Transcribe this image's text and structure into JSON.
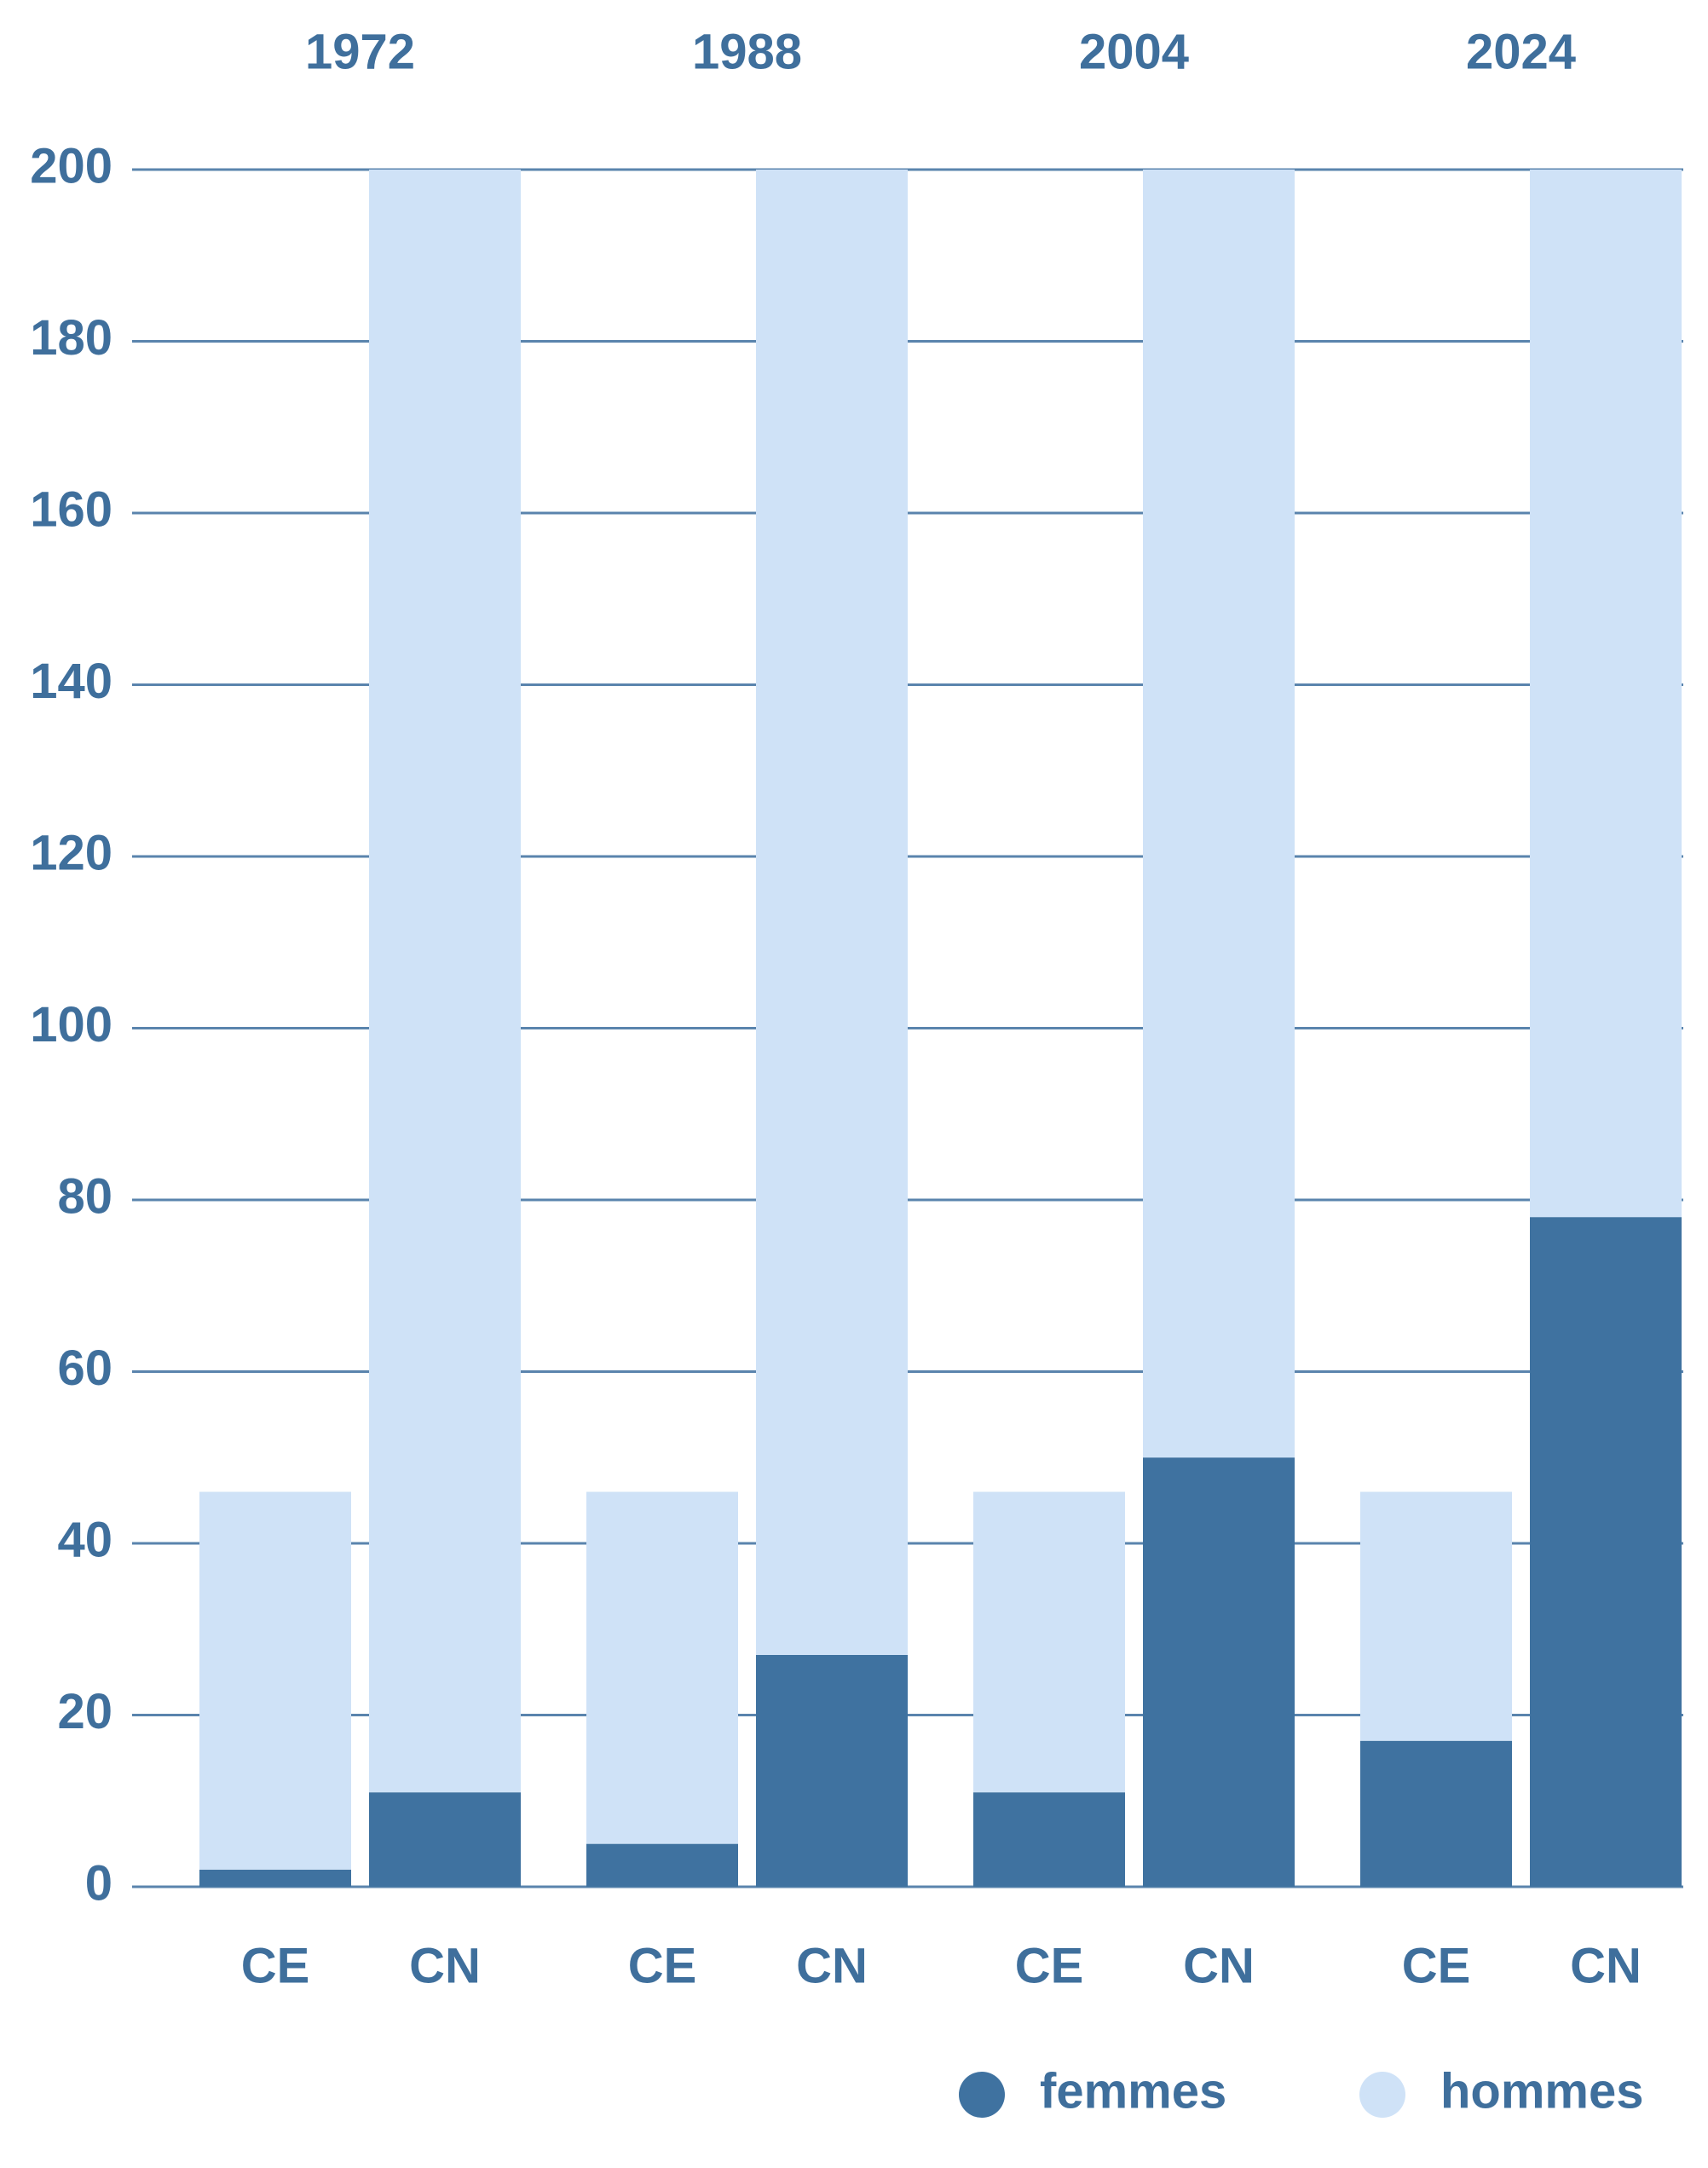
{
  "chart_data": {
    "type": "stacked-bar",
    "groups": [
      "1972",
      "1988",
      "2004",
      "2024"
    ],
    "categories": [
      "CE",
      "CN",
      "CE",
      "CN",
      "CE",
      "CN",
      "CE",
      "CN"
    ],
    "series": [
      {
        "name": "femmes",
        "color": "#3f72a0",
        "values": [
          2,
          11,
          5,
          27,
          11,
          50,
          17,
          78
        ]
      },
      {
        "name": "hommes",
        "color": "#cfe2f7",
        "values": [
          44,
          189,
          41,
          173,
          35,
          150,
          29,
          122
        ]
      }
    ],
    "ylim": [
      0,
      200
    ],
    "yticks": [
      0,
      20,
      40,
      60,
      80,
      100,
      120,
      140,
      160,
      180,
      200
    ],
    "grid": true,
    "legend": "bottom-right"
  }
}
